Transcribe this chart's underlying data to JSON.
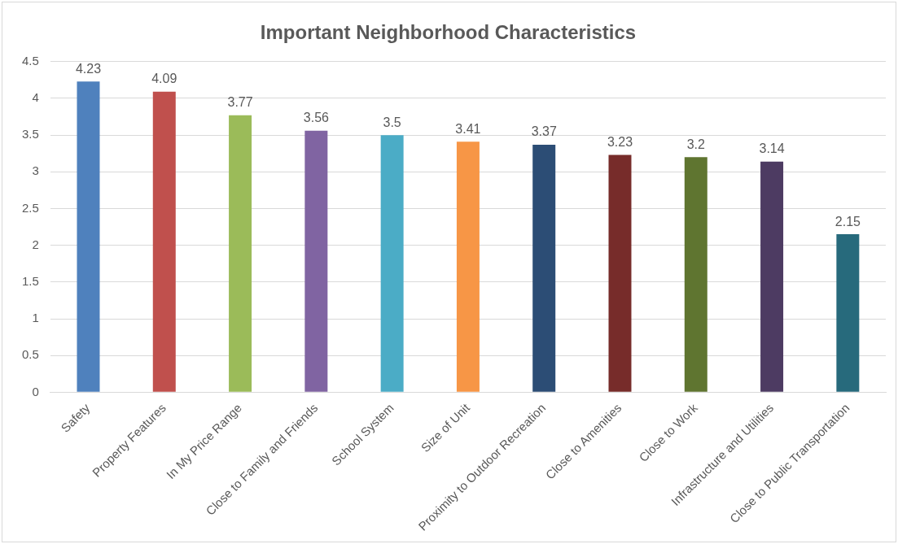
{
  "chart_data": {
    "type": "bar",
    "title": "Important Neighborhood Characteristics",
    "categories": [
      "Safety",
      "Property Features",
      "In My Price Range",
      "Close to Family and Friends",
      "School System",
      "Size of Unit",
      "Proximity to Outdoor Recreation",
      "Close to Amenities",
      "Close to Work",
      "Infrastructure and Utilities",
      "Close to Public Transportation"
    ],
    "values": [
      4.23,
      4.09,
      3.77,
      3.56,
      3.5,
      3.41,
      3.37,
      3.23,
      3.2,
      3.14,
      2.15
    ],
    "colors": [
      "#4f81bd",
      "#c0504d",
      "#9bbb59",
      "#8064a2",
      "#4bacc6",
      "#f79646",
      "#2c4d75",
      "#772c2a",
      "#5f7530",
      "#4d3b62",
      "#276a7c"
    ],
    "ylim": [
      0,
      4.5
    ],
    "yticks": [
      0,
      0.5,
      1,
      1.5,
      2,
      2.5,
      3,
      3.5,
      4,
      4.5
    ],
    "grid": "y",
    "data_labels": true,
    "legend": false
  }
}
